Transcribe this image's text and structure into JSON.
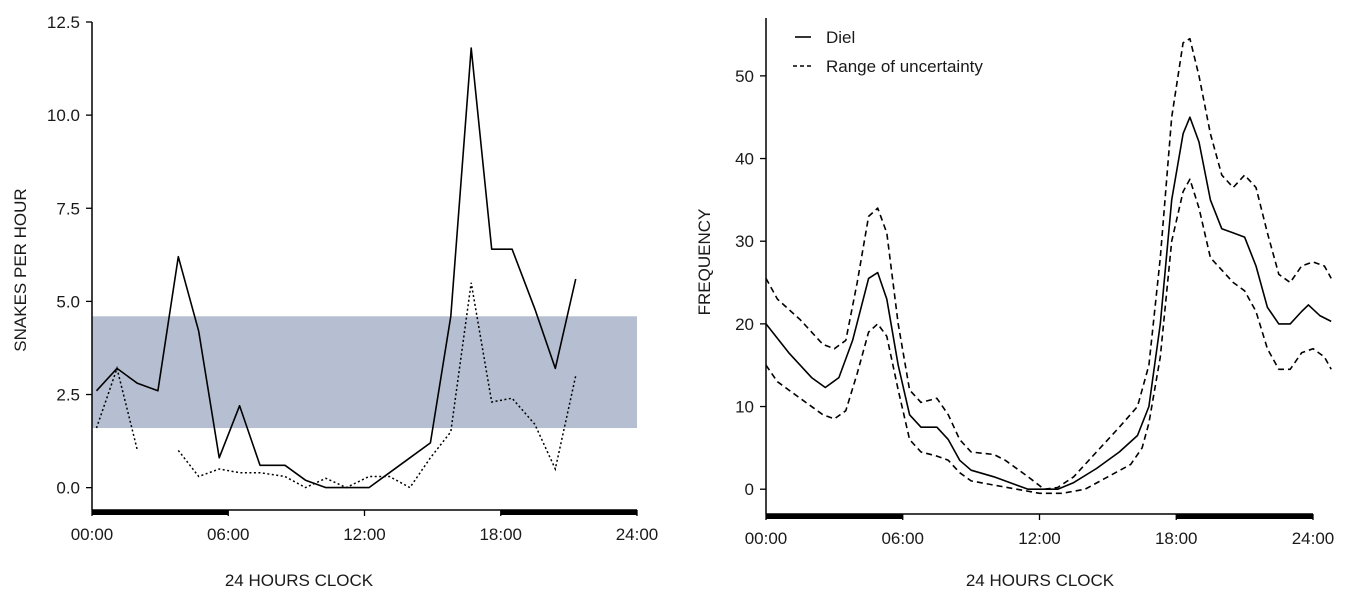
{
  "chart_data": [
    {
      "type": "line",
      "ylabel": "SNAKES PER HOUR",
      "xlabel": "24 HOURS CLOCK",
      "xlim": [
        0,
        24
      ],
      "ylim": [
        -0.6,
        12.5
      ],
      "x_tick_labels": [
        "00:00",
        "06:00",
        "12:00",
        "18:00",
        "24:00"
      ],
      "x_tick_values": [
        0,
        6,
        12,
        18,
        24
      ],
      "y_tick_labels": [
        "0.0",
        "2.5",
        "5.0",
        "7.5",
        "10.0",
        "12.5"
      ],
      "y_tick_values": [
        0,
        2.5,
        5,
        7.5,
        10,
        12.5
      ],
      "band": {
        "y_min": 1.6,
        "y_max": 4.6,
        "color": "#b5bfd1"
      },
      "night_bars": [
        [
          0,
          6
        ],
        [
          18,
          24
        ]
      ],
      "series": [
        {
          "style": "solid",
          "points": [
            [
              0.2,
              2.6
            ],
            [
              1.1,
              3.2
            ],
            [
              2.0,
              2.8
            ],
            [
              2.9,
              2.6
            ],
            [
              3.8,
              6.2
            ],
            [
              4.7,
              4.2
            ],
            [
              5.6,
              0.8
            ],
            [
              6.5,
              2.2
            ],
            [
              7.4,
              0.6
            ],
            [
              8.5,
              0.6
            ],
            [
              9.4,
              0.2
            ],
            [
              10.3,
              0.0
            ],
            [
              11.2,
              0.0
            ],
            [
              12.2,
              0.0
            ],
            [
              13.1,
              0.4
            ],
            [
              14.0,
              0.8
            ],
            [
              14.9,
              1.2
            ],
            [
              15.8,
              4.6
            ],
            [
              16.7,
              11.8
            ],
            [
              17.6,
              6.4
            ],
            [
              18.5,
              6.4
            ],
            [
              19.5,
              4.8
            ],
            [
              20.4,
              3.2
            ],
            [
              21.3,
              5.6
            ]
          ]
        },
        {
          "style": "dotted",
          "segments": [
            [
              [
                0.2,
                1.6
              ],
              [
                1.1,
                3.2
              ],
              [
                2.0,
                1.0
              ]
            ],
            [
              [
                3.8,
                1.0
              ],
              [
                4.7,
                0.3
              ],
              [
                5.6,
                0.5
              ],
              [
                6.5,
                0.4
              ],
              [
                7.4,
                0.4
              ],
              [
                8.5,
                0.3
              ],
              [
                9.4,
                0.0
              ],
              [
                10.3,
                0.25
              ],
              [
                11.2,
                0.0
              ],
              [
                12.2,
                0.3
              ],
              [
                13.1,
                0.3
              ],
              [
                14.0,
                0.0
              ],
              [
                14.9,
                0.8
              ],
              [
                15.8,
                1.5
              ],
              [
                16.7,
                5.5
              ],
              [
                17.6,
                2.3
              ],
              [
                18.5,
                2.4
              ],
              [
                19.5,
                1.7
              ],
              [
                20.4,
                0.5
              ],
              [
                21.3,
                3.0
              ]
            ]
          ]
        }
      ]
    },
    {
      "type": "line",
      "ylabel": "FREQUENCY",
      "xlabel": "24 HOURS CLOCK",
      "xlim": [
        0,
        24
      ],
      "ylim": [
        -3,
        57
      ],
      "x_tick_labels": [
        "00:00",
        "06:00",
        "12:00",
        "18:00",
        "24:00"
      ],
      "x_tick_values": [
        0,
        6,
        12,
        18,
        24
      ],
      "y_tick_labels": [
        "0",
        "10",
        "20",
        "30",
        "40",
        "50"
      ],
      "y_tick_values": [
        0,
        10,
        20,
        30,
        40,
        50
      ],
      "night_bars": [
        [
          0,
          6
        ],
        [
          18,
          24
        ]
      ],
      "legend": [
        {
          "label": "Diel",
          "style": "solid"
        },
        {
          "label": "Range of uncertainty",
          "style": "dashed"
        }
      ],
      "series": [
        {
          "name": "Diel",
          "style": "solid",
          "points": [
            [
              0,
              20
            ],
            [
              1,
              16.5
            ],
            [
              2,
              13.5
            ],
            [
              2.6,
              12.3
            ],
            [
              3.2,
              13.5
            ],
            [
              3.8,
              18
            ],
            [
              4.5,
              25.5
            ],
            [
              4.9,
              26.2
            ],
            [
              5.3,
              23
            ],
            [
              5.8,
              15
            ],
            [
              6.3,
              9
            ],
            [
              6.8,
              7.5
            ],
            [
              7.5,
              7.5
            ],
            [
              8,
              6
            ],
            [
              8.5,
              3.5
            ],
            [
              9,
              2.3
            ],
            [
              10,
              1.5
            ],
            [
              11,
              0.5
            ],
            [
              11.5,
              0
            ],
            [
              12.2,
              0
            ],
            [
              12.8,
              0
            ],
            [
              13.5,
              0.8
            ],
            [
              14.5,
              2.5
            ],
            [
              15.5,
              4.5
            ],
            [
              16.3,
              6.5
            ],
            [
              16.8,
              10
            ],
            [
              17.3,
              20
            ],
            [
              17.8,
              35
            ],
            [
              18.3,
              43
            ],
            [
              18.6,
              45
            ],
            [
              19,
              42
            ],
            [
              19.5,
              35
            ],
            [
              20,
              31.5
            ],
            [
              20.5,
              31
            ],
            [
              21,
              30.5
            ],
            [
              21.5,
              27
            ],
            [
              22,
              22
            ],
            [
              22.5,
              20
            ],
            [
              23,
              20
            ],
            [
              23.5,
              21.5
            ],
            [
              23.8,
              22.3
            ],
            [
              24.3,
              21
            ],
            [
              24.8,
              20.3
            ]
          ]
        },
        {
          "name": "Range of uncertainty (upper)",
          "style": "dashed",
          "points": [
            [
              0,
              25.5
            ],
            [
              0.5,
              23
            ],
            [
              1.5,
              20.5
            ],
            [
              2.5,
              17.5
            ],
            [
              3,
              17
            ],
            [
              3.5,
              18
            ],
            [
              4,
              25
            ],
            [
              4.5,
              33
            ],
            [
              4.9,
              34
            ],
            [
              5.3,
              31
            ],
            [
              5.8,
              20
            ],
            [
              6.3,
              12
            ],
            [
              6.8,
              10.5
            ],
            [
              7.5,
              11
            ],
            [
              8,
              9
            ],
            [
              8.5,
              6
            ],
            [
              9,
              4.5
            ],
            [
              10,
              4.2
            ],
            [
              10.5,
              3.5
            ],
            [
              11.5,
              1.5
            ],
            [
              12.2,
              0
            ],
            [
              12.8,
              0.2
            ],
            [
              13.5,
              1.5
            ],
            [
              14.5,
              4.5
            ],
            [
              15.5,
              7.5
            ],
            [
              16.3,
              10
            ],
            [
              16.8,
              15
            ],
            [
              17.3,
              28
            ],
            [
              17.8,
              45
            ],
            [
              18.3,
              54
            ],
            [
              18.6,
              54.5
            ],
            [
              19,
              50
            ],
            [
              19.5,
              43
            ],
            [
              20,
              38
            ],
            [
              20.5,
              36.5
            ],
            [
              21,
              38
            ],
            [
              21.5,
              36.5
            ],
            [
              22,
              31
            ],
            [
              22.5,
              26
            ],
            [
              23,
              25
            ],
            [
              23.5,
              27
            ],
            [
              24,
              27.5
            ],
            [
              24.5,
              27
            ],
            [
              24.8,
              25.5
            ]
          ]
        },
        {
          "name": "Range of uncertainty (lower)",
          "style": "dashed",
          "points": [
            [
              0,
              15
            ],
            [
              0.5,
              13
            ],
            [
              1.5,
              11
            ],
            [
              2.5,
              9
            ],
            [
              3,
              8.5
            ],
            [
              3.5,
              9.5
            ],
            [
              4,
              14
            ],
            [
              4.5,
              19
            ],
            [
              4.9,
              20
            ],
            [
              5.3,
              18.5
            ],
            [
              5.8,
              12
            ],
            [
              6.3,
              6
            ],
            [
              6.8,
              4.5
            ],
            [
              7.5,
              4
            ],
            [
              8,
              3.5
            ],
            [
              8.5,
              2
            ],
            [
              9,
              1
            ],
            [
              10,
              0.5
            ],
            [
              11,
              0
            ],
            [
              12,
              -0.5
            ],
            [
              13,
              -0.5
            ],
            [
              14,
              0
            ],
            [
              15,
              1.5
            ],
            [
              16,
              3
            ],
            [
              16.5,
              5
            ],
            [
              16.8,
              8
            ],
            [
              17.3,
              16
            ],
            [
              17.8,
              30
            ],
            [
              18.3,
              36
            ],
            [
              18.6,
              37.5
            ],
            [
              19,
              34
            ],
            [
              19.5,
              28
            ],
            [
              20,
              26.5
            ],
            [
              20.5,
              25
            ],
            [
              21,
              24
            ],
            [
              21.5,
              21.5
            ],
            [
              22,
              17
            ],
            [
              22.5,
              14.5
            ],
            [
              23,
              14.5
            ],
            [
              23.5,
              16.5
            ],
            [
              24,
              17
            ],
            [
              24.5,
              16
            ],
            [
              24.8,
              14.5
            ]
          ]
        }
      ]
    }
  ]
}
